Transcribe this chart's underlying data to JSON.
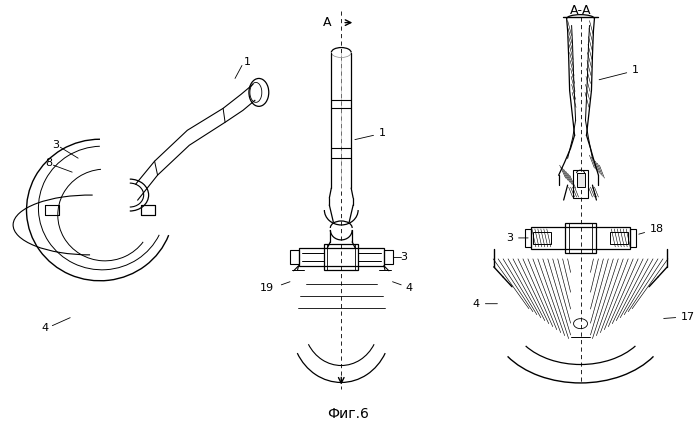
{
  "bg_color": "#ffffff",
  "title": "Фиг.6",
  "title_fontsize": 10,
  "fig_width": 6.99,
  "fig_height": 4.28,
  "dpi": 100
}
